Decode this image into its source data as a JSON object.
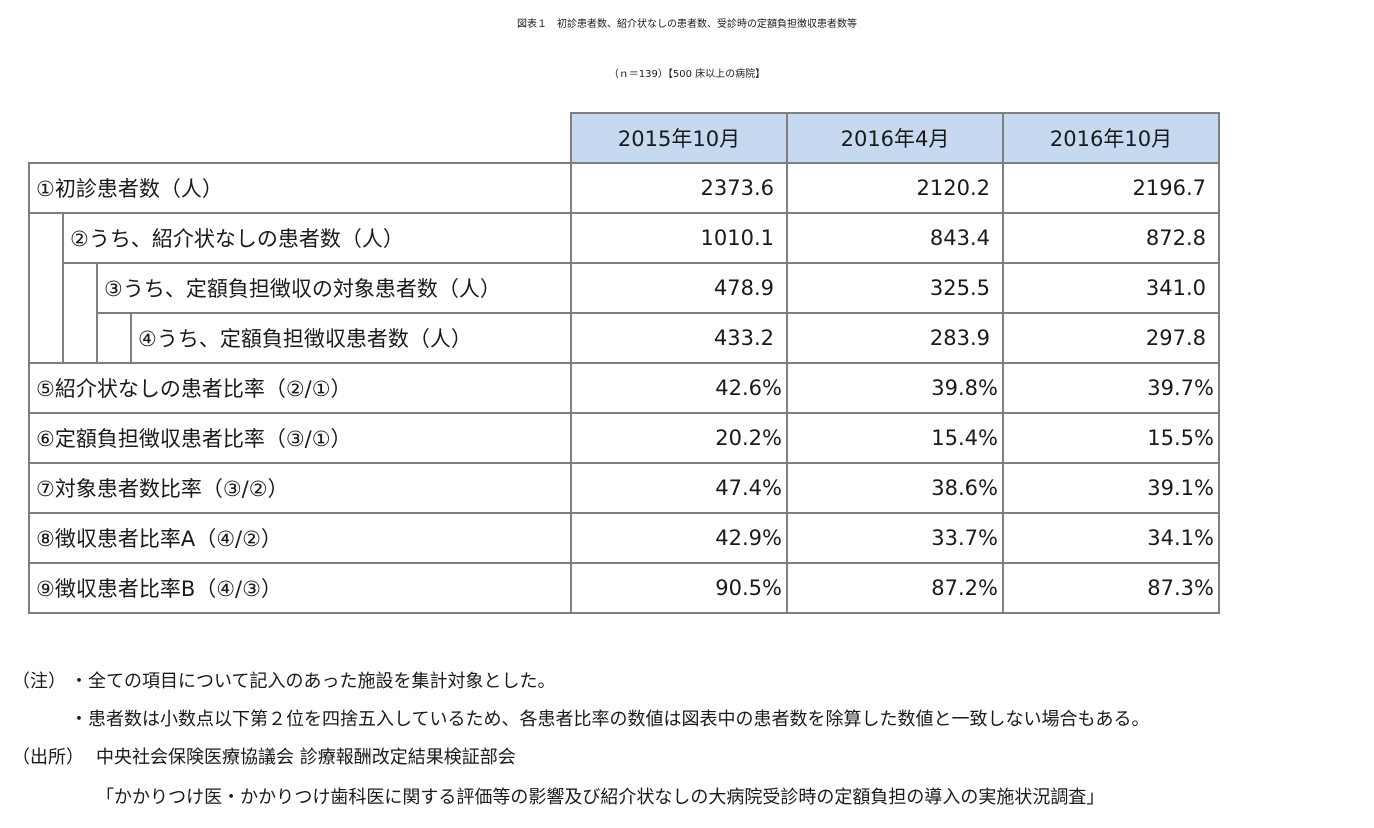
{
  "title": {
    "line1": "図表１　初診患者数、紹介状なしの患者数、受診時の定額負担徴収患者数等",
    "line2": "（ｎ＝139）【500 床以上の病院】"
  },
  "table": {
    "columns": [
      "2015年10月",
      "2016年4月",
      "2016年10月"
    ],
    "rows": [
      {
        "label": "①初診患者数（人）",
        "values": [
          "2373.6",
          "2120.2",
          "2196.7"
        ]
      },
      {
        "label": "②うち、紹介状なしの患者数（人）",
        "values": [
          "1010.1",
          "843.4",
          "872.8"
        ]
      },
      {
        "label": "③うち、定額負担徴収の対象患者数（人）",
        "values": [
          "478.9",
          "325.5",
          "341.0"
        ]
      },
      {
        "label": "④うち、定額負担徴収患者数（人）",
        "values": [
          "433.2",
          "283.9",
          "297.8"
        ]
      },
      {
        "label": "⑤紹介状なしの患者比率（②/①）",
        "values": [
          "42.6%",
          "39.8%",
          "39.7%"
        ]
      },
      {
        "label": "⑥定額負担徴収患者比率（③/①）",
        "values": [
          "20.2%",
          "15.4%",
          "15.5%"
        ]
      },
      {
        "label": "⑦対象患者数比率（③/②）",
        "values": [
          "47.4%",
          "38.6%",
          "39.1%"
        ]
      },
      {
        "label": "⑧徴収患者比率A（④/②）",
        "values": [
          "42.9%",
          "33.7%",
          "34.1%"
        ]
      },
      {
        "label": "⑨徴収患者比率B（④/③）",
        "values": [
          "90.5%",
          "87.2%",
          "87.3%"
        ]
      }
    ]
  },
  "notes": {
    "note_label": "（注）",
    "note_1": "・全ての項目について記入のあった施設を集計対象とした。",
    "note_2": "・患者数は小数点以下第２位を四捨五入しているため、各患者比率の数値は図表中の患者数を除算した数値と一致しない場合もある。",
    "source_label": "（出所）",
    "source_1": "中央社会保険医療協議会 診療報酬改定結果検証部会",
    "source_2": "「かかりつけ医・かかりつけ歯科医に関する評価等の影響及び紹介状なしの大病院受診時の定額負担の導入の実施状況調査」"
  }
}
